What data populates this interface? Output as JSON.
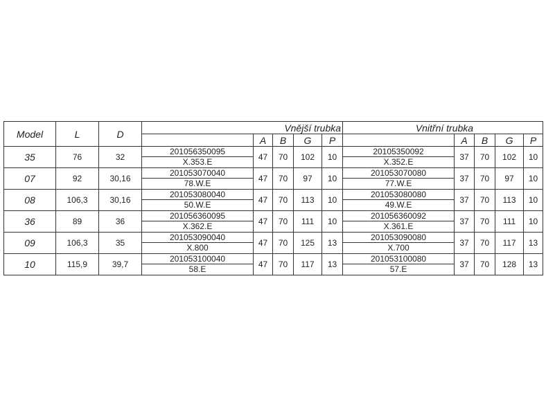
{
  "headers": {
    "model": "Model",
    "L": "L",
    "D": "D",
    "outer_group": "Vnější trubka",
    "inner_group": "Vnitřní trubka",
    "A": "A",
    "B": "B",
    "G": "G",
    "P": "P"
  },
  "rows": [
    {
      "model": "35",
      "L": "76",
      "D": "32",
      "outer": {
        "code": "201056350095",
        "ref": "X.353.E",
        "A": "47",
        "B": "70",
        "G": "102",
        "P": "10"
      },
      "inner": {
        "code": "20105350092",
        "ref": "X.352.E",
        "A": "37",
        "B": "70",
        "G": "102",
        "P": "10"
      }
    },
    {
      "model": "07",
      "L": "92",
      "D": "30,16",
      "outer": {
        "code": "201053070040",
        "ref": "78.W.E",
        "A": "47",
        "B": "70",
        "G": "97",
        "P": "10"
      },
      "inner": {
        "code": "201053070080",
        "ref": "77.W.E",
        "A": "37",
        "B": "70",
        "G": "97",
        "P": "10"
      }
    },
    {
      "model": "08",
      "L": "106,3",
      "D": "30,16",
      "outer": {
        "code": "201053080040",
        "ref": "50.W.E",
        "A": "47",
        "B": "70",
        "G": "113",
        "P": "10"
      },
      "inner": {
        "code": "201053080080",
        "ref": "49.W.E",
        "A": "37",
        "B": "70",
        "G": "113",
        "P": "10"
      }
    },
    {
      "model": "36",
      "L": "89",
      "D": "36",
      "outer": {
        "code": "201056360095",
        "ref": "X.362.E",
        "A": "47",
        "B": "70",
        "G": "111",
        "P": "10"
      },
      "inner": {
        "code": "201056360092",
        "ref": "X.361.E",
        "A": "37",
        "B": "70",
        "G": "111",
        "P": "10"
      }
    },
    {
      "model": "09",
      "L": "106,3",
      "D": "35",
      "outer": {
        "code": "201053090040",
        "ref": "X.800",
        "A": "47",
        "B": "70",
        "G": "125",
        "P": "13"
      },
      "inner": {
        "code": "201053090080",
        "ref": "X.700",
        "A": "37",
        "B": "70",
        "G": "117",
        "P": "13"
      }
    },
    {
      "model": "10",
      "L": "115,9",
      "D": "39,7",
      "outer": {
        "code": "201053100040",
        "ref": "58.E",
        "A": "47",
        "B": "70",
        "G": "117",
        "P": "13"
      },
      "inner": {
        "code": "201053100080",
        "ref": "57.E",
        "A": "37",
        "B": "70",
        "G": "128",
        "P": "13"
      }
    }
  ]
}
